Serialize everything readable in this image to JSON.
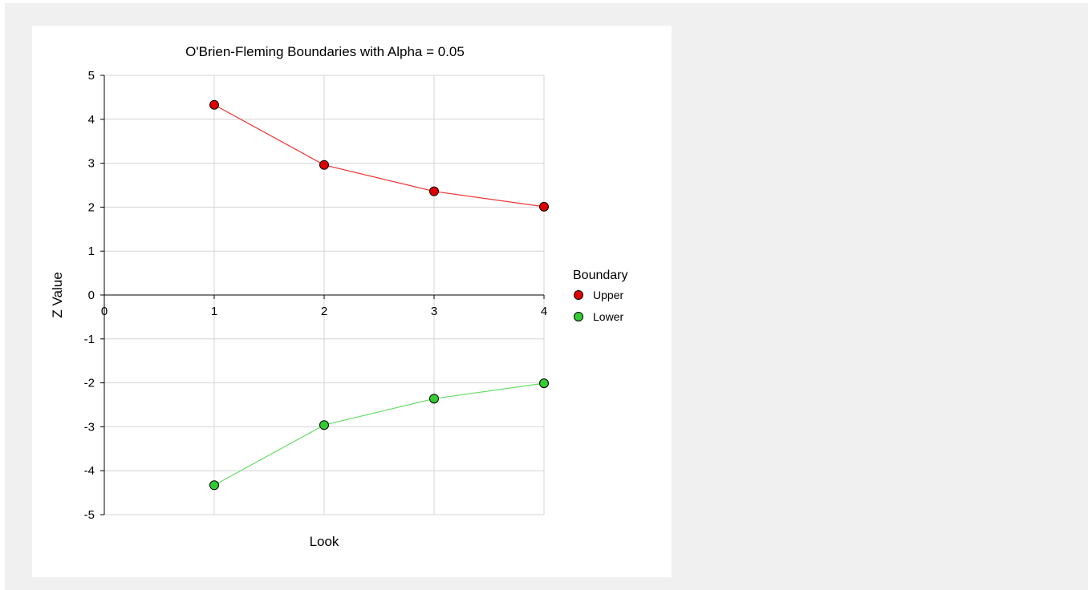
{
  "chart_data": {
    "type": "line",
    "title": "O'Brien-Fleming Boundaries with Alpha = 0.05",
    "xlabel": "Look",
    "ylabel": "Z Value",
    "x": [
      1,
      2,
      3,
      4
    ],
    "xlim": [
      0,
      4
    ],
    "ylim": [
      -5,
      5
    ],
    "xticks": [
      "0",
      "1",
      "2",
      "3",
      "4"
    ],
    "yticks": [
      "5",
      "4",
      "3",
      "2",
      "1",
      "0",
      "-1",
      "-2",
      "-3",
      "-4",
      "-5"
    ],
    "grid": true,
    "legend": {
      "title": "Boundary",
      "placement": "right"
    },
    "series": [
      {
        "name": "Upper",
        "color": "#e00000",
        "line_color": "#f03030",
        "values": [
          4.33,
          2.96,
          2.36,
          2.01
        ]
      },
      {
        "name": "Lower",
        "color": "#33cc33",
        "line_color": "#66dd66",
        "values": [
          -4.33,
          -2.96,
          -2.36,
          -2.01
        ]
      }
    ]
  }
}
